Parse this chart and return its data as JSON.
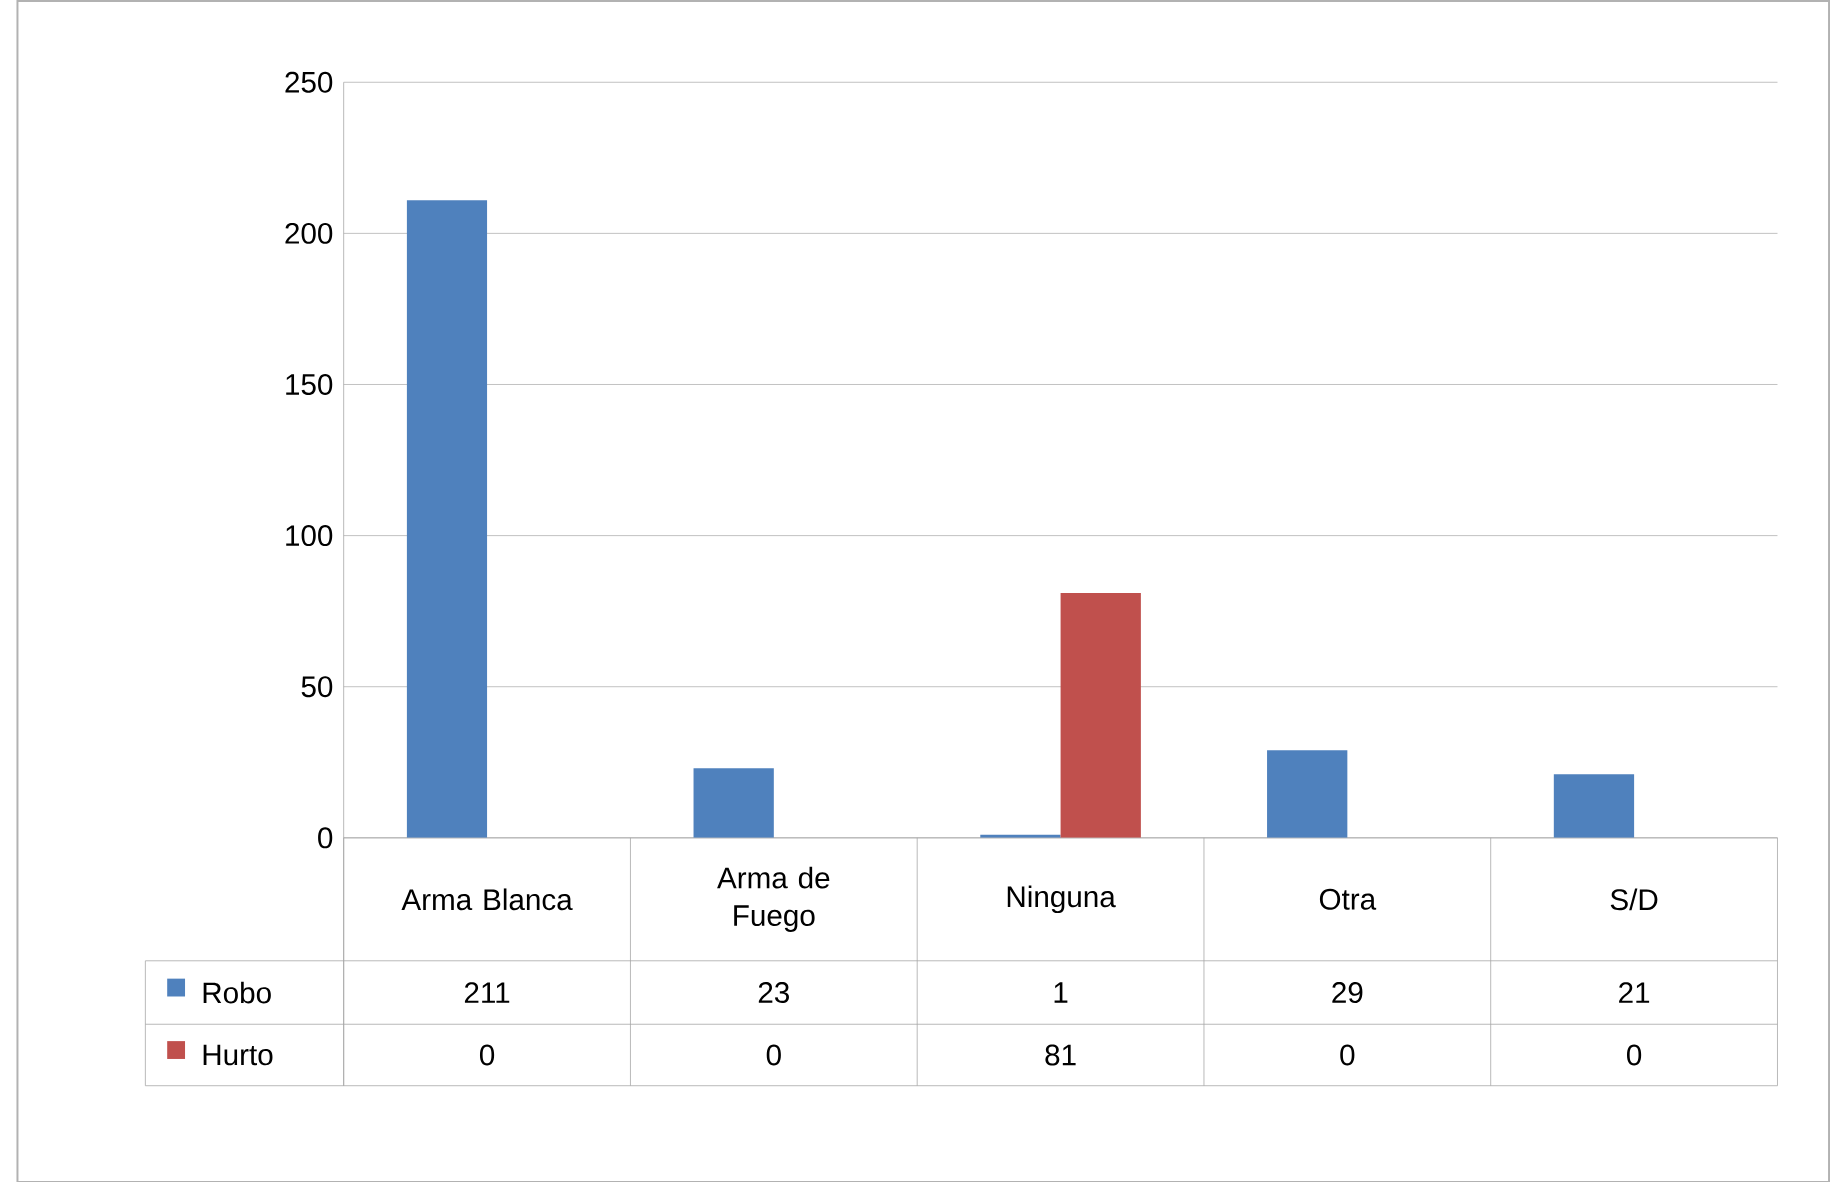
{
  "chart_data": {
    "type": "bar",
    "categories": [
      "Arma Blanca",
      "Arma de Fuego",
      "Ninguna",
      "Otra",
      "S/D"
    ],
    "series": [
      {
        "name": "Robo",
        "color": "#4f81bd",
        "values": [
          211,
          23,
          1,
          29,
          21
        ]
      },
      {
        "name": "Hurto",
        "color": "#c0504d",
        "values": [
          0,
          0,
          81,
          0,
          0
        ]
      }
    ],
    "ylim": [
      0,
      250
    ],
    "yticks": [
      0,
      50,
      100,
      150,
      200,
      250
    ],
    "grid": "y",
    "data_labels": true,
    "legend": "bottom"
  }
}
